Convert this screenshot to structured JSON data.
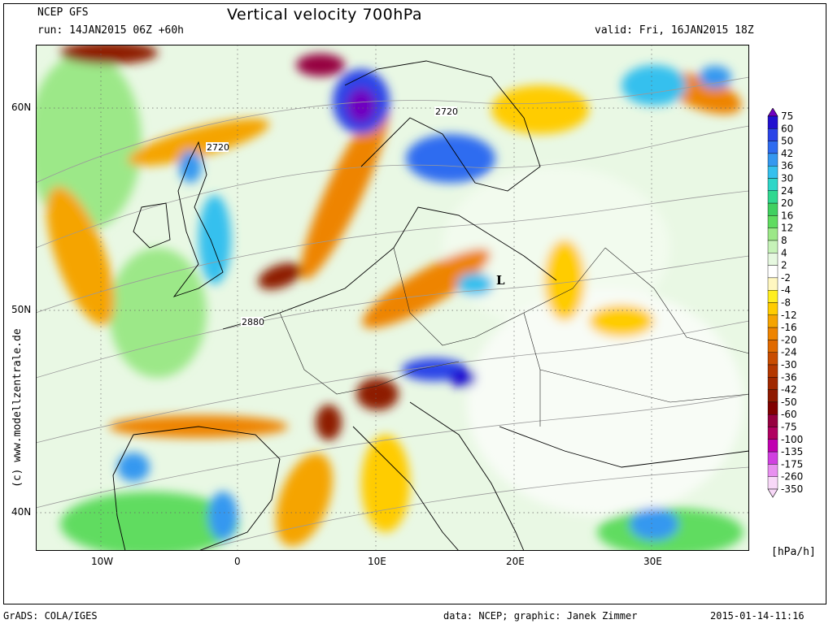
{
  "header": {
    "model": "NCEP GFS",
    "run": "run: 14JAN2015 06Z +60h",
    "title": "Vertical velocity 700hPa",
    "valid": "valid: Fri, 16JAN2015 18Z"
  },
  "map": {
    "lat_labels": [
      "60N",
      "50N",
      "40N"
    ],
    "lon_labels": [
      "10W",
      "0",
      "10E",
      "20E",
      "30E"
    ],
    "contour_labels": [
      "2720",
      "2720",
      "2880"
    ],
    "low_marker": "L"
  },
  "colorbar": {
    "unit": "[hPa/h]",
    "levels": [
      "75",
      "60",
      "50",
      "42",
      "36",
      "30",
      "24",
      "20",
      "16",
      "12",
      "8",
      "4",
      "2",
      "-2",
      "-4",
      "-8",
      "-12",
      "-16",
      "-20",
      "-24",
      "-30",
      "-36",
      "-42",
      "-50",
      "-60",
      "-75",
      "-100",
      "-135",
      "-175",
      "-260",
      "-350"
    ],
    "colors": [
      "#7000c0",
      "#2010d0",
      "#2a44e8",
      "#2f6cf0",
      "#3598f0",
      "#35c0ee",
      "#2ed6c8",
      "#30d890",
      "#40d060",
      "#60dc60",
      "#9ce888",
      "#c6f2b8",
      "#e6f8e0",
      "#ffffff",
      "#fff7c0",
      "#ffee20",
      "#ffcc00",
      "#f5a400",
      "#ee8400",
      "#e06a00",
      "#c84c00",
      "#b43800",
      "#a02800",
      "#8e1a00",
      "#800000",
      "#960040",
      "#b00060",
      "#c000b0",
      "#d040e0",
      "#e890f0",
      "#f8d8f8"
    ]
  },
  "footer": {
    "grads": "GrADS: COLA/IGES",
    "credit": "data: NCEP; graphic: Janek Zimmer",
    "timestamp": "2015-01-14-11:16"
  },
  "watermark": "(c)  www.modellzentrale.de"
}
